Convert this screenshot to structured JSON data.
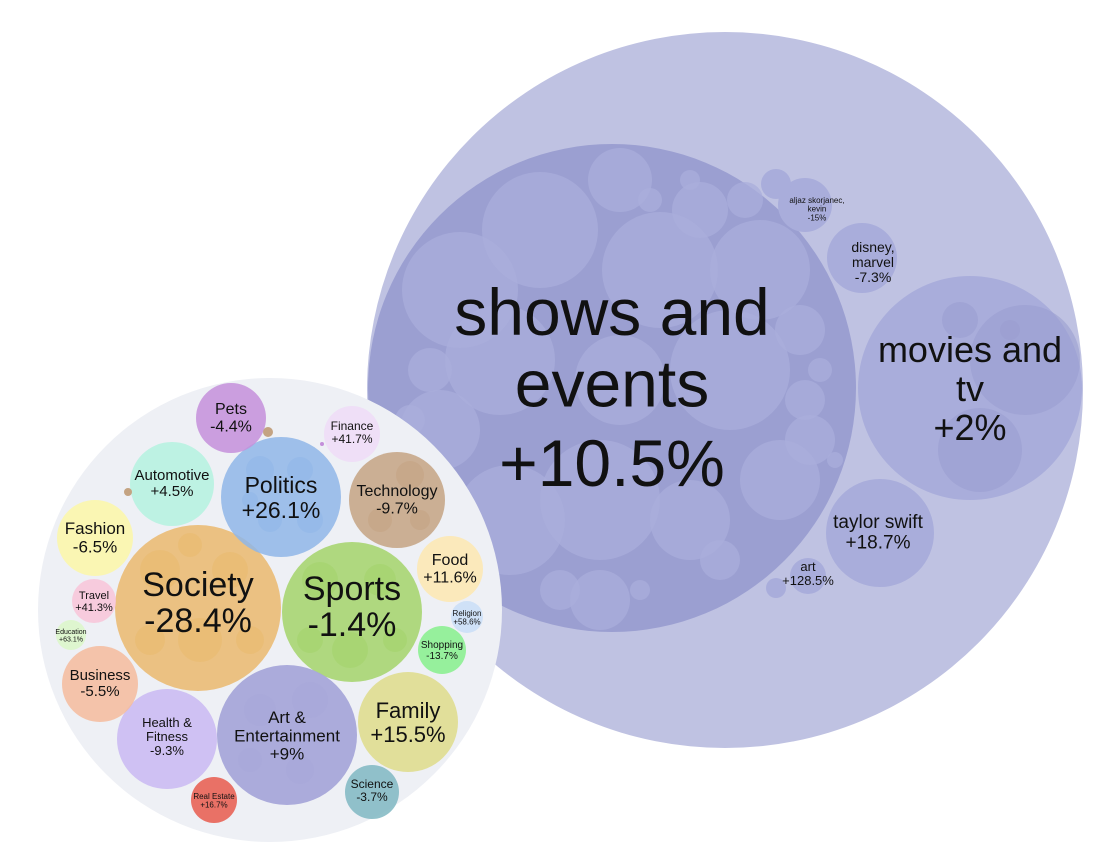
{
  "chart_data": [
    {
      "type": "bubble",
      "title": "",
      "categories": [
        {
          "name": "Society",
          "change": "-28.4%",
          "value": -28.4,
          "color": "#eab96d"
        },
        {
          "name": "Sports",
          "change": "-1.4%",
          "value": -1.4,
          "color": "#a3d36a"
        },
        {
          "name": "Art & Entertainment",
          "change": "+9%",
          "value": 9,
          "color": "#a7a7d9"
        },
        {
          "name": "Politics",
          "change": "+26.1%",
          "value": 26.1,
          "color": "#8fb6e8"
        },
        {
          "name": "Family",
          "change": "+15.5%",
          "value": 15.5,
          "color": "#dedc8a"
        },
        {
          "name": "Technology",
          "change": "-9.7%",
          "value": -9.7,
          "color": "#c4a382"
        },
        {
          "name": "Health & Fitness",
          "change": "-9.3%",
          "value": -9.3,
          "color": "#c9b8f2"
        },
        {
          "name": "Automotive",
          "change": "+4.5%",
          "value": 4.5,
          "color": "#b4f2df"
        },
        {
          "name": "Fashion",
          "change": "-6.5%",
          "value": -6.5,
          "color": "#fbf7a7"
        },
        {
          "name": "Pets",
          "change": "-4.4%",
          "value": -4.4,
          "color": "#c48fda"
        },
        {
          "name": "Business",
          "change": "-5.5%",
          "value": -5.5,
          "color": "#f4bb9c"
        },
        {
          "name": "Food",
          "change": "+11.6%",
          "value": 11.6,
          "color": "#fde7b0"
        },
        {
          "name": "Finance",
          "change": "+41.7%",
          "value": 41.7,
          "color": "#eedcf7"
        },
        {
          "name": "Science",
          "change": "-3.7%",
          "value": -3.7,
          "color": "#7fb7c2"
        },
        {
          "name": "Shopping",
          "change": "-13.7%",
          "value": -13.7,
          "color": "#86f08c"
        },
        {
          "name": "Travel",
          "change": "+41.3%",
          "value": 41.3,
          "color": "#f8c4d8"
        },
        {
          "name": "Real Estate",
          "change": "+16.7%",
          "value": 16.7,
          "color": "#e85a4c"
        },
        {
          "name": "Religion",
          "change": "+58.6%",
          "value": 58.6,
          "color": "#c9def7"
        },
        {
          "name": "Education",
          "change": "+63.1%",
          "value": 63.1,
          "color": "#dbf7c8"
        }
      ],
      "detail": {
        "parent": "Art & Entertainment",
        "items": [
          {
            "name": "shows and events",
            "change": "+10.5%",
            "value": 10.5
          },
          {
            "name": "movies and tv",
            "change": "+2%",
            "value": 2
          },
          {
            "name": "taylor swift",
            "change": "+18.7%",
            "value": 18.7
          },
          {
            "name": "disney, marvel",
            "change": "-7.3%",
            "value": -7.3
          },
          {
            "name": "art",
            "change": "+128.5%",
            "value": 128.5
          },
          {
            "name": "aljaz skorjanec, kevin",
            "change": "-15%",
            "value": -15
          }
        ]
      }
    }
  ],
  "colors": {
    "detail_outer": "#bfc2e2",
    "detail_inner": "#9b9fd1",
    "detail_sub": "#a9addb",
    "overview_bg": "#eef0f5"
  }
}
